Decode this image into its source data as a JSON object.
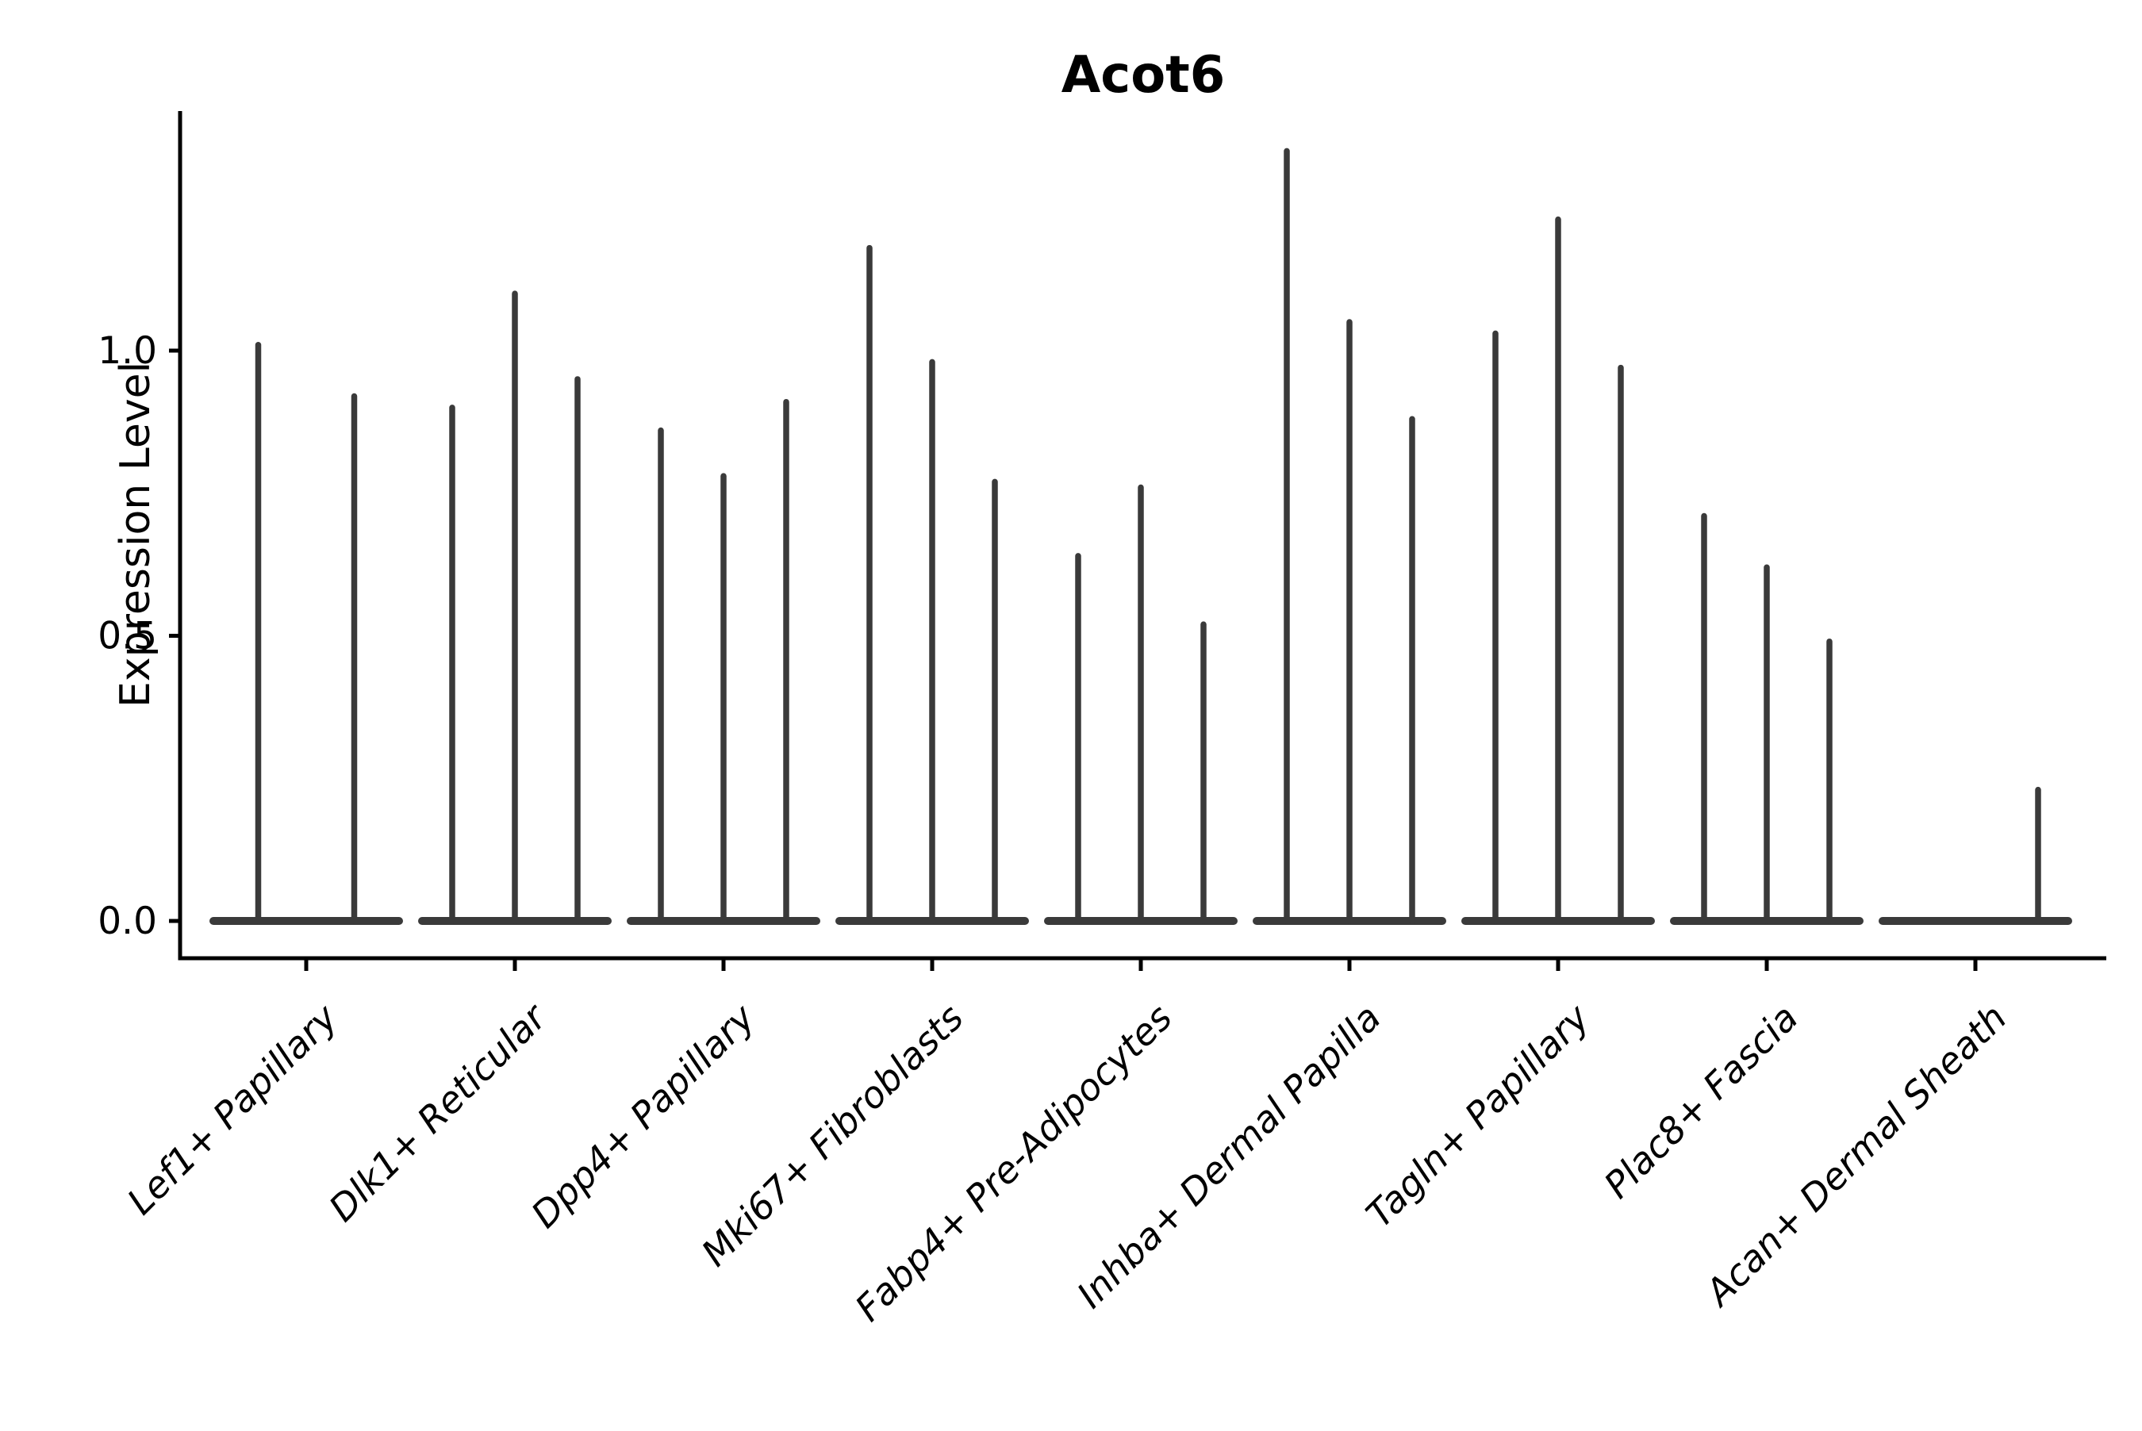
{
  "page": {
    "background": "#ffffff"
  },
  "chart_data": {
    "type": "violin",
    "title": "Acot6",
    "xlabel": "",
    "ylabel": "Expression Level",
    "categories": [
      "Lef1+ Papillary",
      "Dlk1+ Reticular",
      "Dpp4+ Papillary",
      "Mki67+ Fibroblasts",
      "Fabp4+ Pre-Adipocytes",
      "Inhba+ Dermal Papilla",
      "Tagln+ Papillary",
      "Plac8+ Fascia",
      "Acan+ Dermal Sheath"
    ],
    "violin_maxima": [
      [
        1.01,
        0.92
      ],
      [
        0.9,
        1.1,
        0.95
      ],
      [
        0.86,
        0.78,
        0.91
      ],
      [
        1.18,
        0.98,
        0.77
      ],
      [
        0.64,
        0.76,
        0.52
      ],
      [
        1.35,
        1.05,
        0.88
      ],
      [
        1.03,
        1.23,
        0.97
      ],
      [
        0.71,
        0.62,
        0.49
      ],
      [
        0.0,
        0.0,
        0.23
      ]
    ],
    "baseline_value": 0.0,
    "ytick_values": [
      0.0,
      0.5,
      1.0
    ],
    "ytick_labels": [
      "0.0",
      "0.5",
      "1.0"
    ],
    "ylim": [
      -0.07,
      1.42
    ],
    "grid": false,
    "legend": false,
    "violin_color": "#3a3a3a",
    "axis_color": "#000000"
  }
}
